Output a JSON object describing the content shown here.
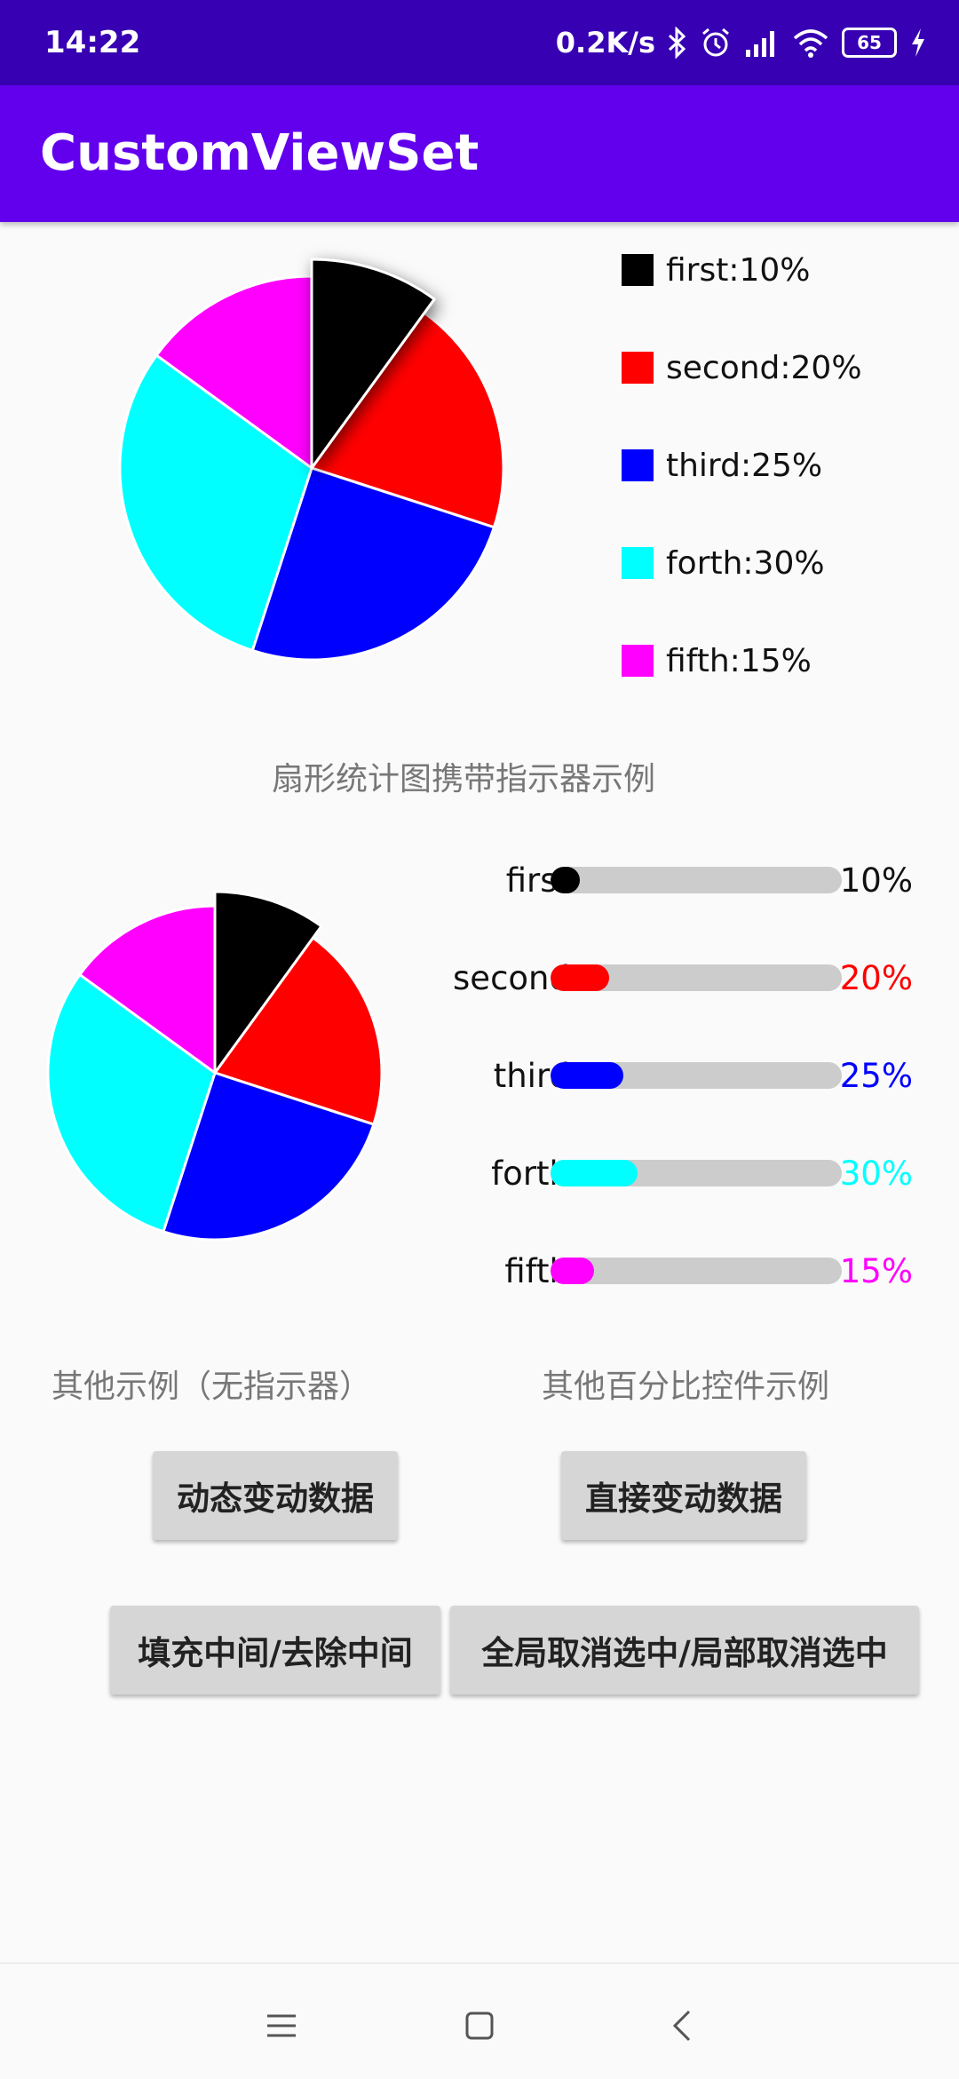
{
  "status_bar": {
    "time": "14:22",
    "network_speed": "0.2K/s",
    "battery_level": "65",
    "icons": [
      "bluetooth-icon",
      "alarm-icon",
      "signal-icon",
      "wifi-icon",
      "battery-icon",
      "charging-icon"
    ]
  },
  "app_bar": {
    "title": "CustomViewSet"
  },
  "chart1": {
    "type": "pie",
    "slices": [
      {
        "label": "first",
        "value": 10,
        "color": "#000000",
        "selected": true
      },
      {
        "label": "second",
        "value": 20,
        "color": "#ff0000"
      },
      {
        "label": "third",
        "value": 25,
        "color": "#0000ff"
      },
      {
        "label": "forth",
        "value": 30,
        "color": "#00ffff"
      },
      {
        "label": "fifth",
        "value": 15,
        "color": "#ff00ff"
      }
    ],
    "legend": [
      {
        "text": "first:10%",
        "color": "#000000"
      },
      {
        "text": "second:20%",
        "color": "#ff0000"
      },
      {
        "text": "third:25%",
        "color": "#0000ff"
      },
      {
        "text": "forth:30%",
        "color": "#00ffff"
      },
      {
        "text": "fifth:15%",
        "color": "#ff00ff"
      }
    ],
    "caption": "扇形统计图携带指示器示例"
  },
  "chart2": {
    "type": "pie",
    "slices": [
      {
        "label": "first",
        "value": 10,
        "color": "#000000",
        "selected": true
      },
      {
        "label": "second",
        "value": 20,
        "color": "#ff0000"
      },
      {
        "label": "third",
        "value": 25,
        "color": "#0000ff"
      },
      {
        "label": "forth",
        "value": 30,
        "color": "#00ffff"
      },
      {
        "label": "fifth",
        "value": 15,
        "color": "#ff00ff"
      }
    ],
    "caption": "其他示例（无指示器）"
  },
  "bars": {
    "items": [
      {
        "label": "first",
        "value_text": "10%",
        "percent": 10,
        "color": "#000000",
        "value_color": "#111111"
      },
      {
        "label": "second",
        "value_text": "20%",
        "percent": 20,
        "color": "#ff0000",
        "value_color": "#ff0000"
      },
      {
        "label": "third",
        "value_text": "25%",
        "percent": 25,
        "color": "#0000ff",
        "value_color": "#0000ff"
      },
      {
        "label": "forth",
        "value_text": "30%",
        "percent": 30,
        "color": "#00ffff",
        "value_color": "#00ffff"
      },
      {
        "label": "fifth",
        "value_text": "15%",
        "percent": 15,
        "color": "#ff00ff",
        "value_color": "#ff00ff"
      }
    ],
    "caption": "其他百分比控件示例"
  },
  "buttons": {
    "dynamic_change": "动态变动数据",
    "direct_change": "直接变动数据",
    "fill_center": "填充中间/去除中间",
    "deselect": "全局取消选中/局部取消选中"
  },
  "nav_bar": {
    "icons": [
      "menu-icon",
      "home-icon",
      "back-icon"
    ]
  }
}
